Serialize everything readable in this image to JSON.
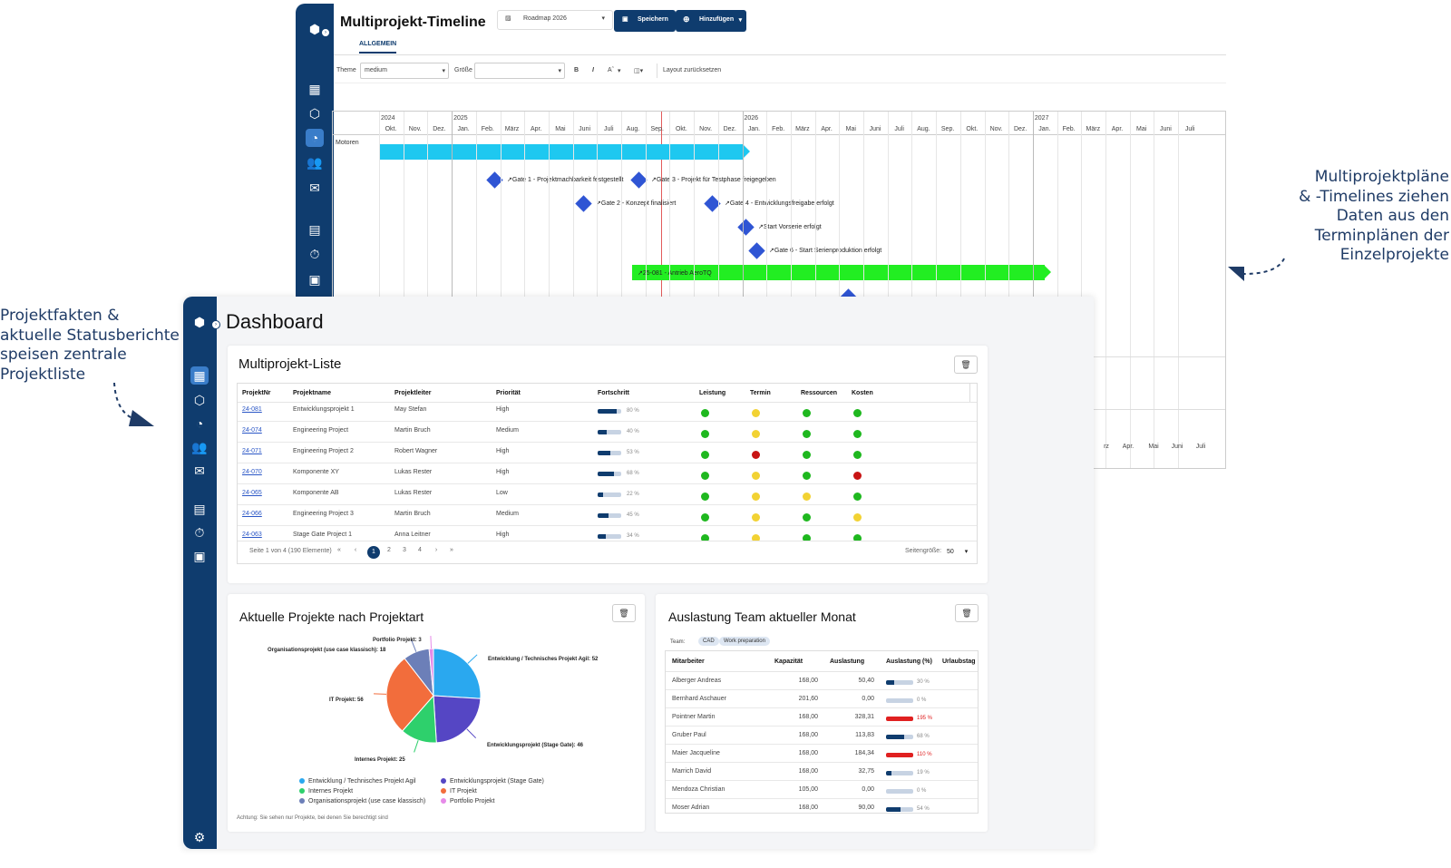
{
  "annotations": {
    "right": [
      "Multiprojektpläne",
      "& -Timelines ziehen",
      "Daten aus den",
      "Terminplänen der",
      "Einzelprojekte"
    ],
    "left": [
      "Projektfakten &",
      "aktuelle Statusberichte",
      "speisen zentrale",
      "Projektliste"
    ]
  },
  "timeline": {
    "title": "Multiprojekt-Timeline",
    "tab": "ALLGEMEIN",
    "roadmap_select": "Roadmap 2026",
    "save_label": "Speichern",
    "add_label": "Hinzufügen",
    "toolbar": {
      "theme_label": "Theme",
      "theme_value": "medium",
      "size_label": "Größe",
      "bold": "B",
      "italic": "I",
      "font_size_icon": "Aˆ",
      "reset_label": "Layout zurücksetzen"
    },
    "years": [
      "2024",
      "2025",
      "2026",
      "2027"
    ],
    "months": [
      "Okt.",
      "Nov.",
      "Dez.",
      "Jan.",
      "Feb.",
      "März",
      "Apr.",
      "Mai",
      "Juni",
      "Juli",
      "Aug.",
      "Sep.",
      "Okt.",
      "Nov.",
      "Dez.",
      "Jan.",
      "Feb.",
      "März",
      "Apr.",
      "Mai",
      "Juni",
      "Juli",
      "Aug.",
      "Sep.",
      "Okt.",
      "Nov.",
      "Dez.",
      "Jan.",
      "Feb.",
      "März",
      "Apr.",
      "Mai",
      "Juni",
      "Juli"
    ],
    "row_label": "Motoren",
    "milestones": [
      "Gate 1 - Projektmachbarkeit festgestellt",
      "Gate 3 - Projekt für Testphase freigegeben",
      "Gate 2 - Konzept finalisiert",
      "Gate 4 - Entwicklungsfreigabe erfolgt",
      "Start Vorserie erfolgt",
      "Gate 6 - Start Serienproduktion erfolgt"
    ],
    "green_bar_label": "25-081 - Antrieb AeroTQ",
    "bottom_months": [
      "rz",
      "Apr.",
      "Mai",
      "Juni",
      "Juli"
    ],
    "colors": {
      "summary_bar": "#1ec8f0",
      "task_bar": "#22ee22",
      "milestone": "#2f55d4",
      "today_line": "#e25b5b"
    }
  },
  "dashboard": {
    "title": "Dashboard",
    "project_list": {
      "title": "Multiprojekt-Liste",
      "columns": [
        "ProjektNr",
        "Projektname",
        "Projektleiter",
        "Priorität",
        "Fortschritt",
        "Leistung",
        "Termin",
        "Ressourcen",
        "Kosten"
      ],
      "rows": [
        {
          "nr": "24-081",
          "name": "Entwicklungsprojekt 1",
          "lead": "May Stefan",
          "prio": "High",
          "progress": 80,
          "progress_label": "80 %",
          "status": [
            "green",
            "yellow",
            "green",
            "green"
          ]
        },
        {
          "nr": "24-074",
          "name": "Engineering Project",
          "lead": "Martin Bruch",
          "prio": "Medium",
          "progress": 40,
          "progress_label": "40 %",
          "status": [
            "green",
            "yellow",
            "green",
            "green"
          ]
        },
        {
          "nr": "24-071",
          "name": "Engineering Project 2",
          "lead": "Robert Wagner",
          "prio": "High",
          "progress": 53,
          "progress_label": "53 %",
          "status": [
            "green",
            "red",
            "green",
            "green"
          ]
        },
        {
          "nr": "24-070",
          "name": "Komponente XY",
          "lead": "Lukas Rester",
          "prio": "High",
          "progress": 68,
          "progress_label": "68 %",
          "status": [
            "green",
            "yellow",
            "green",
            "red"
          ]
        },
        {
          "nr": "24-065",
          "name": "Komponente AB",
          "lead": "Lukas Rester",
          "prio": "Low",
          "progress": 22,
          "progress_label": "22 %",
          "status": [
            "green",
            "yellow",
            "yellow",
            "green"
          ]
        },
        {
          "nr": "24-066",
          "name": "Engineering Project 3",
          "lead": "Martin Bruch",
          "prio": "Medium",
          "progress": 45,
          "progress_label": "45 %",
          "status": [
            "green",
            "yellow",
            "green",
            "yellow"
          ]
        },
        {
          "nr": "24-063",
          "name": "Stage Gate Project 1",
          "lead": "Anna Leitner",
          "prio": "High",
          "progress": 34,
          "progress_label": "34 %",
          "status": [
            "green",
            "yellow",
            "green",
            "green"
          ]
        }
      ],
      "pager_info": "Seite 1 von 4 (190 Elemente)",
      "pages": [
        "1",
        "2",
        "3",
        "4"
      ],
      "page_size_label": "Seitengröße:",
      "page_size": "50"
    },
    "pie_card": {
      "title": "Aktuelle Projekte nach Projektart",
      "note": "Achtung: Sie sehen nur Projekte, bei denen Sie berechtigt sind"
    },
    "team_card": {
      "title": "Auslastung Team aktueller Monat",
      "team_label": "Team:",
      "chips": [
        "CAD",
        "Work preparation"
      ],
      "columns": [
        "Mitarbeiter",
        "Kapazität",
        "Auslastung",
        "Auslastung (%)",
        "Urlaubstag"
      ],
      "rows": [
        {
          "name": "Alberger Andreas",
          "cap": "168,00",
          "load": "50,40",
          "pct": 30,
          "pct_label": "30 %"
        },
        {
          "name": "Bernhard Aschauer",
          "cap": "201,60",
          "load": "0,00",
          "pct": 0,
          "pct_label": "0 %"
        },
        {
          "name": "Pointner Martin",
          "cap": "168,00",
          "load": "328,31",
          "pct": 195,
          "pct_label": "195 %"
        },
        {
          "name": "Gruber Paul",
          "cap": "168,00",
          "load": "113,83",
          "pct": 68,
          "pct_label": "68 %"
        },
        {
          "name": "Maier Jacqueline",
          "cap": "168,00",
          "load": "184,34",
          "pct": 110,
          "pct_label": "110 %"
        },
        {
          "name": "Marrich David",
          "cap": "168,00",
          "load": "32,75",
          "pct": 19,
          "pct_label": "19 %"
        },
        {
          "name": "Mendoza Christian",
          "cap": "105,00",
          "load": "0,00",
          "pct": 0,
          "pct_label": "0 %"
        },
        {
          "name": "Moser Adrian",
          "cap": "168,00",
          "load": "90,00",
          "pct": 54,
          "pct_label": "54 %"
        }
      ]
    }
  },
  "chart_data": {
    "type": "pie",
    "categories": [
      "Entwicklung / Technisches Projekt Agil",
      "Entwicklungsprojekt (Stage Gate)",
      "Internes Projekt",
      "IT Projekt",
      "Organisationsprojekt (use case klassisch)",
      "Portfolio Projekt"
    ],
    "values": [
      52,
      46,
      25,
      56,
      18,
      3
    ],
    "slice_labels": [
      "Entwicklung / Technisches Projekt Agil: 52",
      "Entwicklungsprojekt (Stage Gate): 46",
      "Internes Projekt: 25",
      "IT Projekt: 56",
      "Organisationsprojekt (use case klassisch): 18",
      "Portfolio Projekt: 3"
    ],
    "colors": [
      "#2aa8ef",
      "#5546c4",
      "#2ed06c",
      "#f26d3c",
      "#6c7fb8",
      "#e68ae8"
    ],
    "legend_position": "bottom"
  }
}
